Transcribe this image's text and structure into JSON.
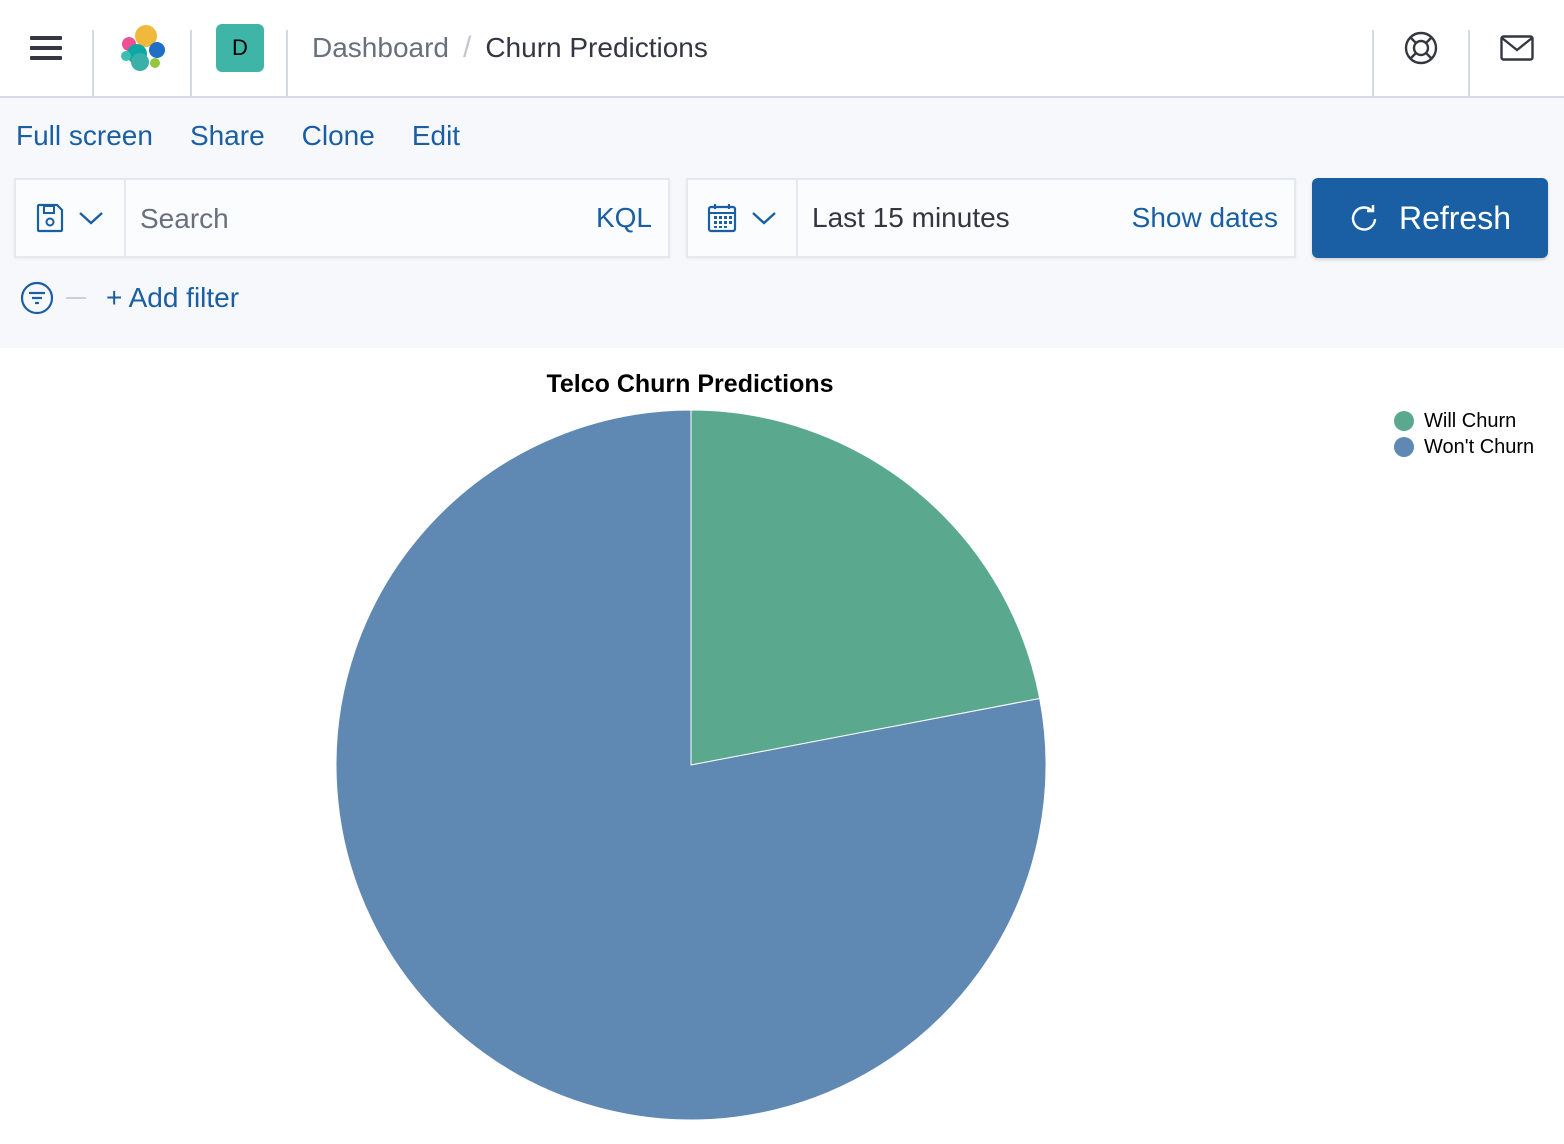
{
  "header": {
    "space_initial": "D",
    "breadcrumbs": {
      "parent": "Dashboard",
      "separator": "/",
      "current": "Churn Predictions"
    },
    "icons": [
      "menu-icon",
      "elastic-logo-icon",
      "help-lifebuoy-icon",
      "mail-icon"
    ]
  },
  "top_nav": {
    "full_screen": "Full screen",
    "share": "Share",
    "clone": "Clone",
    "edit": "Edit"
  },
  "query_bar": {
    "search_placeholder": "Search",
    "language": "KQL",
    "date_range": "Last 15 minutes",
    "show_dates": "Show dates",
    "refresh_label": "Refresh"
  },
  "filter_bar": {
    "add_filter": "+ Add filter"
  },
  "colors": {
    "accent": "#1a5fa4",
    "will_churn": "#5aa98e",
    "wont_churn": "#5f88b3"
  },
  "chart_data": {
    "type": "pie",
    "title": "Telco Churn Predictions",
    "categories": [
      "Will Churn",
      "Won't Churn"
    ],
    "values": [
      22,
      78
    ],
    "colors": [
      "#5aa98e",
      "#5f88b3"
    ],
    "legend_position": "top-right"
  }
}
